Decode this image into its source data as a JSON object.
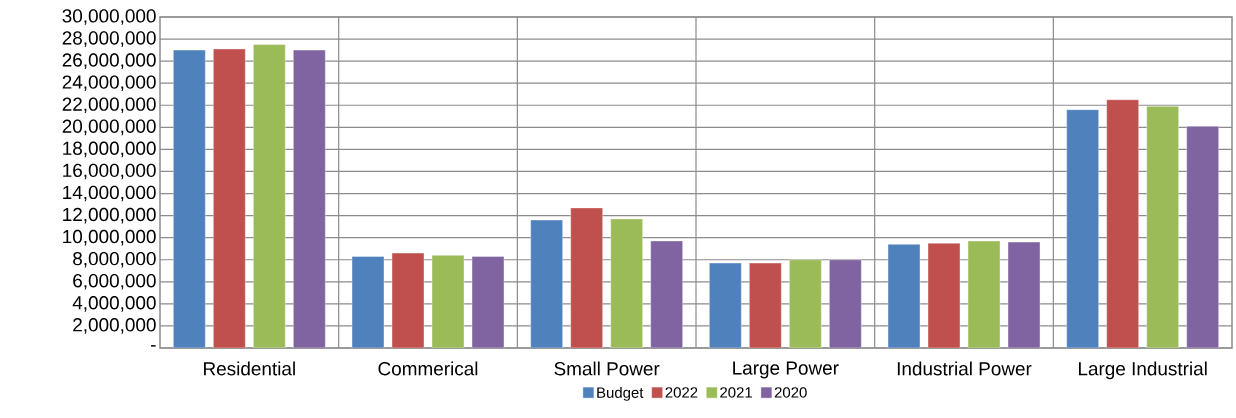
{
  "chart_data": {
    "type": "bar",
    "categories": [
      "Residential",
      "Commerical",
      "Small Power",
      "Large Power",
      "Industrial Power",
      "Large Industrial"
    ],
    "series": [
      {
        "name": "Budget",
        "color": "#4f81bd",
        "values": [
          27000000,
          8300000,
          11600000,
          7700000,
          9400000,
          21600000
        ]
      },
      {
        "name": "2022",
        "color": "#c0504d",
        "values": [
          27100000,
          8600000,
          12700000,
          7700000,
          9500000,
          22500000
        ]
      },
      {
        "name": "2021",
        "color": "#9bbb59",
        "values": [
          27500000,
          8400000,
          11700000,
          8000000,
          9700000,
          21900000
        ]
      },
      {
        "name": "2020",
        "color": "#8064a2",
        "values": [
          27000000,
          8300000,
          9700000,
          8000000,
          9600000,
          20100000
        ]
      }
    ],
    "ylim": [
      0,
      30000000
    ],
    "yticks": [
      {
        "value": 0,
        "label": "-"
      },
      {
        "value": 2000000,
        "label": "2,000,000"
      },
      {
        "value": 4000000,
        "label": "4,000,000"
      },
      {
        "value": 6000000,
        "label": "6,000,000"
      },
      {
        "value": 8000000,
        "label": "8,000,000"
      },
      {
        "value": 10000000,
        "label": "10,000,000"
      },
      {
        "value": 12000000,
        "label": "12,000,000"
      },
      {
        "value": 14000000,
        "label": "14,000,000"
      },
      {
        "value": 16000000,
        "label": "16,000,000"
      },
      {
        "value": 18000000,
        "label": "18,000,000"
      },
      {
        "value": 20000000,
        "label": "20,000,000"
      },
      {
        "value": 22000000,
        "label": "22,000,000"
      },
      {
        "value": 24000000,
        "label": "24,000,000"
      },
      {
        "value": 26000000,
        "label": "26,000,000"
      },
      {
        "value": 28000000,
        "label": "28,000,000"
      },
      {
        "value": 30000000,
        "label": "30,000,000"
      }
    ],
    "grid": true,
    "legend": "bottom"
  }
}
